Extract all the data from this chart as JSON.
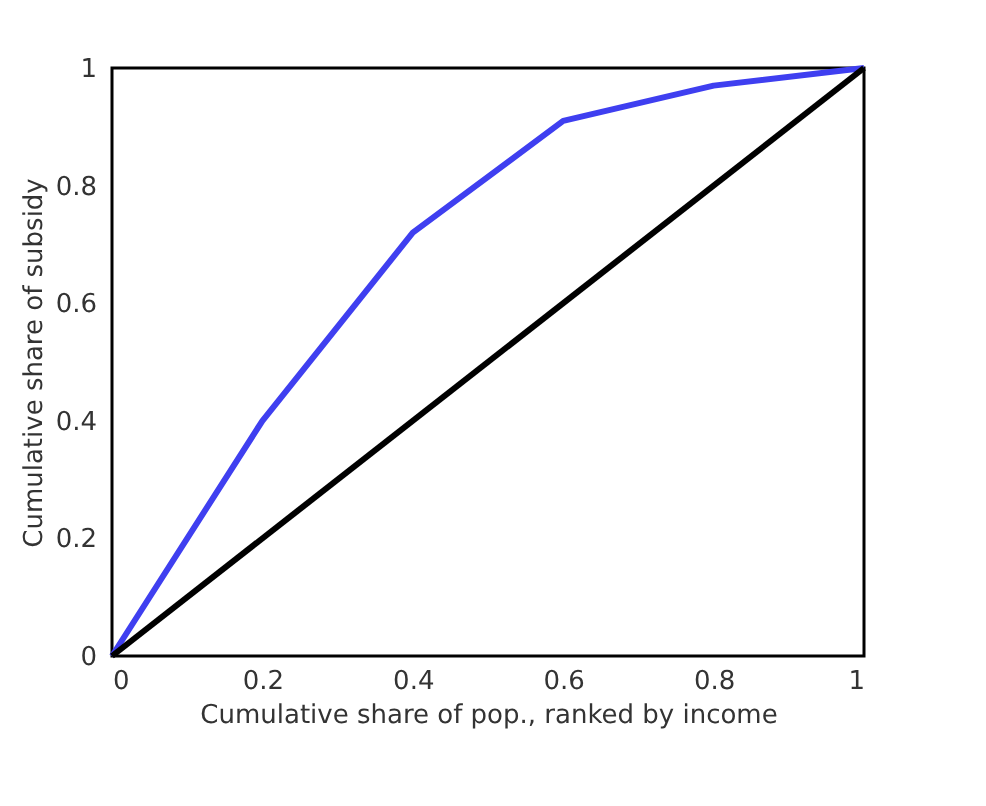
{
  "chart_data": {
    "type": "line",
    "xlabel": "Cumulative share of pop., ranked by income",
    "ylabel": "Cumulative share of subsidy",
    "series": [
      {
        "color": "#3f3ff0",
        "x": [
          0,
          0.2,
          0.4,
          0.6,
          0.8,
          1
        ],
        "values": [
          0,
          0.4,
          0.72,
          0.91,
          0.97,
          1
        ]
      },
      {
        "color": "#000000",
        "x": [
          0,
          1
        ],
        "values": [
          0,
          1
        ]
      }
    ],
    "xlim": [
      0,
      1
    ],
    "ylim": [
      0,
      1
    ],
    "xticks": [
      0,
      0.2,
      0.4,
      0.6,
      0.8,
      1
    ],
    "yticks": [
      0,
      0.2,
      0.4,
      0.6,
      0.8,
      1
    ],
    "grid": false,
    "marker": "none",
    "line_style": "solid"
  }
}
